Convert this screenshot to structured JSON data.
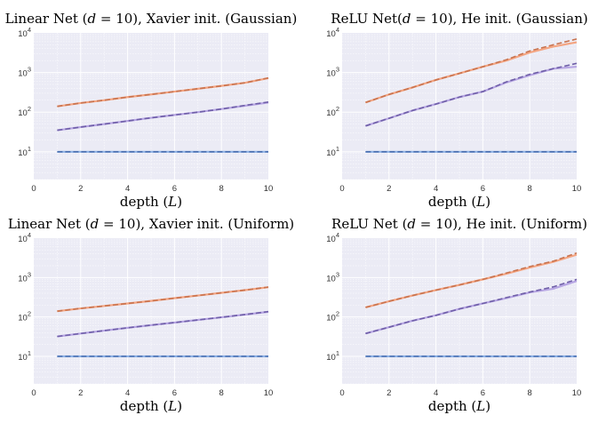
{
  "chart_data": [
    {
      "type": "line",
      "title": "Linear Net (d = 10), Xavier init. (Gaussian)",
      "xlabel": "depth (L)",
      "ylabel": "",
      "yscale": "log",
      "xlim": [
        0,
        10
      ],
      "ylim": [
        2,
        10000
      ],
      "x": [
        1,
        2,
        3,
        4,
        5,
        6,
        7,
        8,
        9,
        10
      ],
      "series": [
        {
          "name": "orange-solid",
          "color": "#f4a582",
          "dash": false,
          "values": [
            140,
            170,
            200,
            240,
            280,
            330,
            390,
            460,
            550,
            720
          ]
        },
        {
          "name": "orange-dashed",
          "color": "#c8734f",
          "dash": true,
          "values": [
            140,
            170,
            200,
            240,
            280,
            330,
            390,
            460,
            550,
            730
          ]
        },
        {
          "name": "purple-solid",
          "color": "#b7a6e3",
          "dash": false,
          "values": [
            35,
            42,
            50,
            60,
            72,
            85,
            100,
            120,
            145,
            175
          ]
        },
        {
          "name": "purple-dashed",
          "color": "#6f5fa8",
          "dash": true,
          "values": [
            35,
            42,
            50,
            60,
            72,
            85,
            100,
            120,
            148,
            180
          ]
        },
        {
          "name": "blue-solid",
          "color": "#8fb3e6",
          "dash": false,
          "values": [
            10,
            10,
            10,
            10,
            10,
            10,
            10,
            10,
            10,
            10
          ]
        },
        {
          "name": "blue-dashed",
          "color": "#4b6fb0",
          "dash": true,
          "values": [
            10,
            10,
            10,
            10,
            10,
            10,
            10,
            10,
            10,
            10
          ]
        }
      ],
      "xticks": [
        "0",
        "2",
        "4",
        "6",
        "8",
        "10"
      ],
      "yticks": [
        "10^1",
        "10^2",
        "10^3",
        "10^4"
      ]
    },
    {
      "type": "line",
      "title": "ReLU Net(d = 10), He init. (Gaussian)",
      "xlabel": "depth (L)",
      "ylabel": "",
      "yscale": "log",
      "xlim": [
        0,
        10
      ],
      "ylim": [
        2,
        10000
      ],
      "x": [
        1,
        2,
        3,
        4,
        5,
        6,
        7,
        8,
        9,
        10
      ],
      "series": [
        {
          "name": "orange-solid",
          "color": "#f4a582",
          "dash": false,
          "values": [
            175,
            280,
            420,
            650,
            950,
            1400,
            2000,
            3200,
            4500,
            5800
          ]
        },
        {
          "name": "orange-dashed",
          "color": "#c8734f",
          "dash": true,
          "values": [
            175,
            280,
            420,
            650,
            950,
            1400,
            2100,
            3500,
            5000,
            7000
          ]
        },
        {
          "name": "purple-solid",
          "color": "#b7a6e3",
          "dash": false,
          "values": [
            45,
            70,
            110,
            160,
            240,
            330,
            560,
            850,
            1250,
            1400
          ]
        },
        {
          "name": "purple-dashed",
          "color": "#6f5fa8",
          "dash": true,
          "values": [
            45,
            70,
            110,
            160,
            240,
            330,
            580,
            900,
            1250,
            1700
          ]
        },
        {
          "name": "blue-solid",
          "color": "#8fb3e6",
          "dash": false,
          "values": [
            10,
            10,
            10,
            10,
            10,
            10,
            10,
            10,
            10,
            10
          ]
        },
        {
          "name": "blue-dashed",
          "color": "#4b6fb0",
          "dash": true,
          "values": [
            10,
            10,
            10,
            10,
            10,
            10,
            10,
            10,
            10,
            10
          ]
        }
      ],
      "xticks": [
        "0",
        "2",
        "4",
        "6",
        "8",
        "10"
      ],
      "yticks": [
        "10^1",
        "10^2",
        "10^3",
        "10^4"
      ]
    },
    {
      "type": "line",
      "title": "Linear Net (d = 10), Xavier init. (Uniform)",
      "xlabel": "depth (L)",
      "ylabel": "",
      "yscale": "log",
      "xlim": [
        0,
        10
      ],
      "ylim": [
        2,
        10000
      ],
      "x": [
        1,
        2,
        3,
        4,
        5,
        6,
        7,
        8,
        9,
        10
      ],
      "series": [
        {
          "name": "orange-solid",
          "color": "#f4a582",
          "dash": false,
          "values": [
            140,
            165,
            190,
            220,
            255,
            300,
            350,
            410,
            480,
            570
          ]
        },
        {
          "name": "orange-dashed",
          "color": "#c8734f",
          "dash": true,
          "values": [
            140,
            165,
            190,
            220,
            255,
            300,
            350,
            410,
            480,
            575
          ]
        },
        {
          "name": "purple-solid",
          "color": "#b7a6e3",
          "dash": false,
          "values": [
            32,
            38,
            45,
            53,
            62,
            72,
            84,
            98,
            115,
            135
          ]
        },
        {
          "name": "purple-dashed",
          "color": "#6f5fa8",
          "dash": true,
          "values": [
            32,
            38,
            45,
            53,
            62,
            72,
            84,
            98,
            115,
            137
          ]
        },
        {
          "name": "blue-solid",
          "color": "#8fb3e6",
          "dash": false,
          "values": [
            10,
            10,
            10,
            10,
            10,
            10,
            10,
            10,
            10,
            10
          ]
        },
        {
          "name": "blue-dashed",
          "color": "#4b6fb0",
          "dash": true,
          "values": [
            10,
            10,
            10,
            10,
            10,
            10,
            10,
            10,
            10,
            10
          ]
        }
      ],
      "xticks": [
        "0",
        "2",
        "4",
        "6",
        "8",
        "10"
      ],
      "yticks": [
        "10^1",
        "10^2",
        "10^3",
        "10^4"
      ]
    },
    {
      "type": "line",
      "title": "ReLU Net (d = 10), He init. (Uniform)",
      "xlabel": "depth (L)",
      "ylabel": "",
      "yscale": "log",
      "xlim": [
        0,
        10
      ],
      "ylim": [
        2,
        10000
      ],
      "x": [
        1,
        2,
        3,
        4,
        5,
        6,
        7,
        8,
        9,
        10
      ],
      "series": [
        {
          "name": "orange-solid",
          "color": "#f4a582",
          "dash": false,
          "values": [
            175,
            250,
            350,
            480,
            650,
            900,
            1250,
            1800,
            2500,
            3800
          ]
        },
        {
          "name": "orange-dashed",
          "color": "#c8734f",
          "dash": true,
          "values": [
            175,
            250,
            350,
            480,
            650,
            900,
            1300,
            1900,
            2600,
            4200
          ]
        },
        {
          "name": "purple-solid",
          "color": "#b7a6e3",
          "dash": false,
          "values": [
            38,
            55,
            80,
            110,
            160,
            220,
            300,
            420,
            520,
            820
          ]
        },
        {
          "name": "purple-dashed",
          "color": "#6f5fa8",
          "dash": true,
          "values": [
            38,
            55,
            80,
            110,
            160,
            220,
            310,
            430,
            580,
            900
          ]
        },
        {
          "name": "blue-solid",
          "color": "#8fb3e6",
          "dash": false,
          "values": [
            10,
            10,
            10,
            10,
            10,
            10,
            10,
            10,
            10,
            10
          ]
        },
        {
          "name": "blue-dashed",
          "color": "#4b6fb0",
          "dash": true,
          "values": [
            10,
            10,
            10,
            10,
            10,
            10,
            10,
            10,
            10,
            10
          ]
        }
      ],
      "xticks": [
        "0",
        "2",
        "4",
        "6",
        "8",
        "10"
      ],
      "yticks": [
        "10^1",
        "10^2",
        "10^3",
        "10^4"
      ]
    }
  ]
}
